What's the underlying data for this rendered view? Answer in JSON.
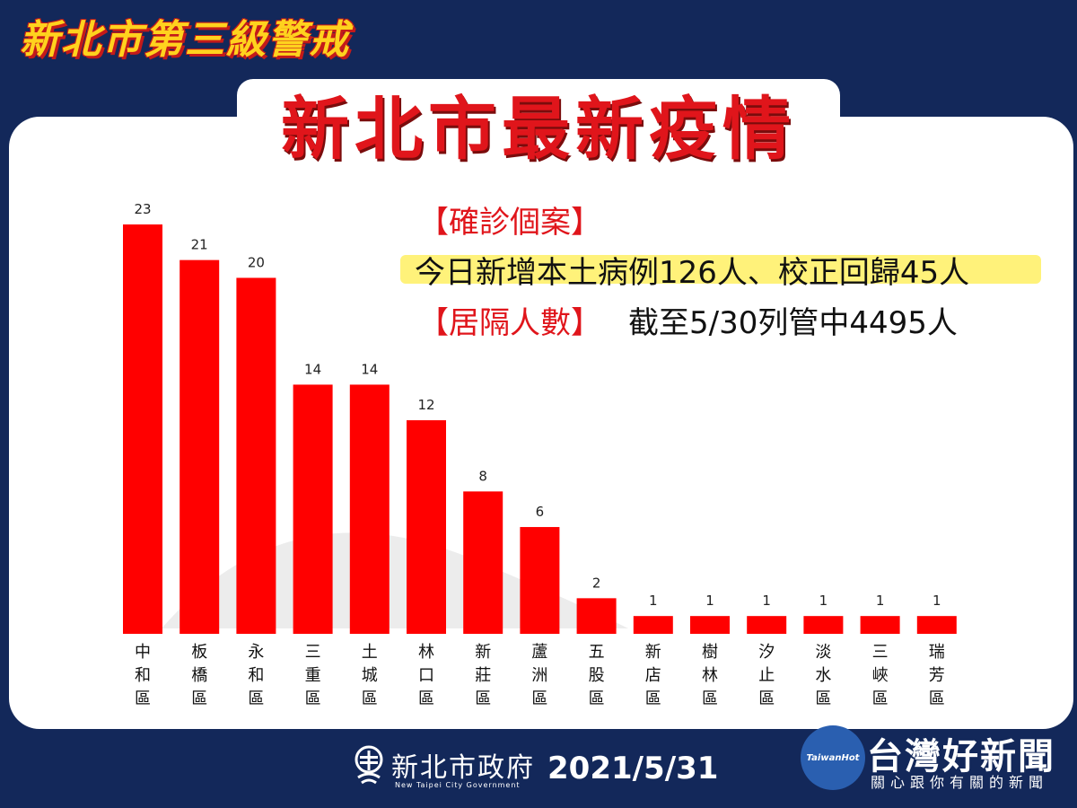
{
  "header": {
    "banner": "新北市第三級警戒",
    "title": "新北市最新疫情"
  },
  "info": {
    "confirmed_label": "【確診個案】",
    "confirmed_text": "今日新增本土病例126人、校正回歸45人",
    "quarantine_label": "【居隔人數】",
    "quarantine_text": "截至5/30列管中4495人"
  },
  "footer": {
    "gov_name": "新北市政府",
    "gov_name_en": "New Taipei City Government",
    "date": "2021/5/31",
    "brand_name": "台灣好新聞",
    "brand_tagline": "關心跟你有關的新聞",
    "brand_logo_text": "TaiwanHot"
  },
  "colors": {
    "bar": "#ff0000",
    "accent_red": "#e0151b",
    "banner_yellow": "#ffd21e",
    "background": "#13285a"
  },
  "chart_data": {
    "type": "bar",
    "categories": [
      "中和區",
      "板橋區",
      "永和區",
      "三重區",
      "土城區",
      "林口區",
      "新莊區",
      "蘆洲區",
      "五股區",
      "新店區",
      "樹林區",
      "汐止區",
      "淡水區",
      "三峽區",
      "瑞芳區"
    ],
    "values": [
      23,
      21,
      20,
      14,
      14,
      12,
      8,
      6,
      2,
      1,
      1,
      1,
      1,
      1,
      1
    ],
    "title": "",
    "xlabel": "",
    "ylabel": "",
    "ylim": [
      0,
      23
    ],
    "grid": false,
    "legend": "none",
    "data_labels": true
  }
}
